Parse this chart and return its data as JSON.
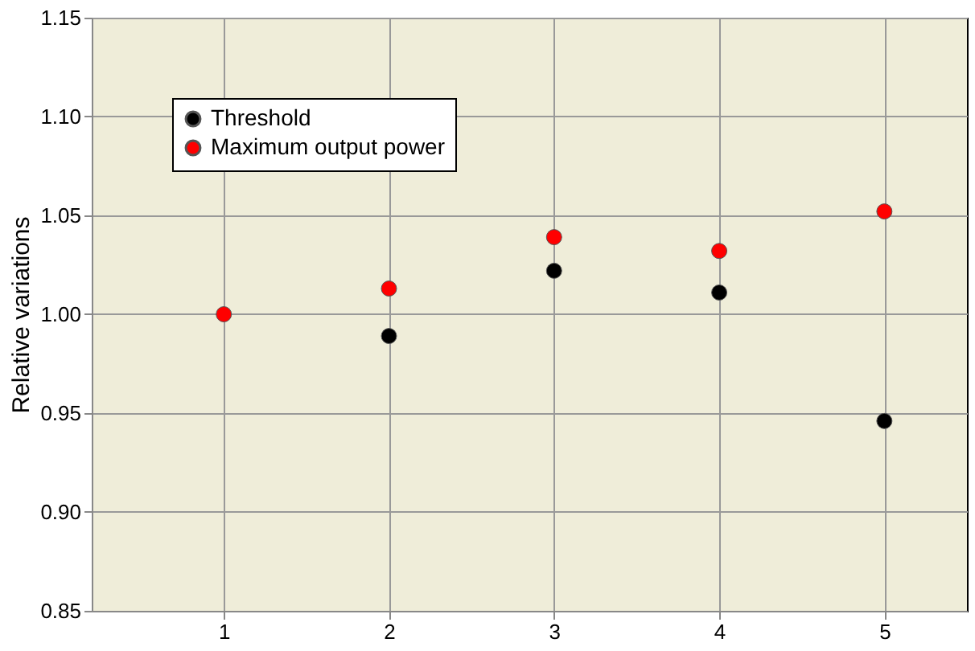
{
  "chart_data": {
    "type": "scatter",
    "ylabel": "Relative variations",
    "x": [
      1,
      2,
      3,
      4,
      5
    ],
    "series": [
      {
        "name": "Threshold",
        "color": "#000000",
        "values": [
          null,
          0.989,
          1.022,
          1.011,
          0.946
        ]
      },
      {
        "name": "Maximum output power",
        "color": "#ff0000",
        "values": [
          1.0,
          1.013,
          1.039,
          1.032,
          1.052
        ]
      }
    ],
    "xlim": [
      0.2,
      5.5
    ],
    "xticks": [
      1,
      2,
      3,
      4,
      5
    ],
    "ylim": [
      0.85,
      1.15
    ],
    "yticks": [
      0.85,
      {
        "value": 0.9,
        "label": "0.90"
      },
      0.95,
      {
        "value": 1.0,
        "label": "1.00"
      },
      1.05,
      {
        "value": 1.1,
        "label": "1.10"
      },
      1.15
    ],
    "grid": true,
    "legend": "top left",
    "marker": "circle"
  }
}
